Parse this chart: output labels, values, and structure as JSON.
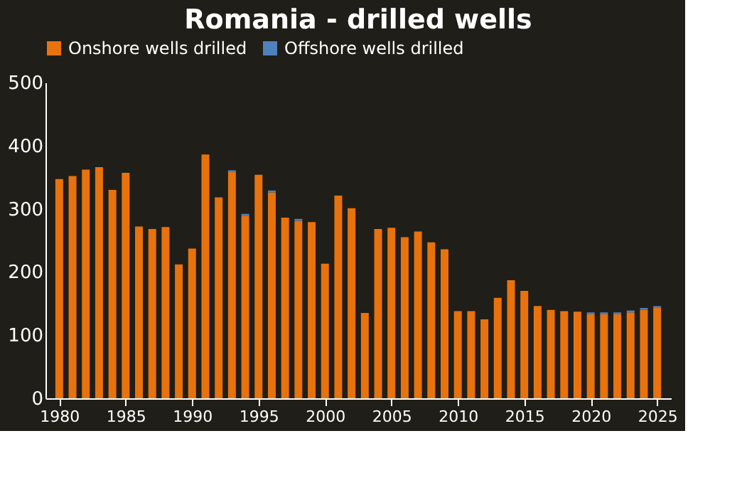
{
  "chart_data": {
    "type": "bar",
    "title": "Romania - drilled wells",
    "x": [
      1980,
      1981,
      1982,
      1983,
      1984,
      1985,
      1986,
      1987,
      1988,
      1989,
      1990,
      1991,
      1992,
      1993,
      1994,
      1995,
      1996,
      1997,
      1998,
      1999,
      2000,
      2001,
      2002,
      2003,
      2004,
      2005,
      2006,
      2007,
      2008,
      2009,
      2010,
      2011,
      2012,
      2013,
      2014,
      2015,
      2016,
      2017,
      2018,
      2019,
      2020,
      2021,
      2022,
      2023,
      2024,
      2025
    ],
    "series": [
      {
        "name": "Onshore wells drilled",
        "color": "#e8720c",
        "values": [
          347,
          352,
          362,
          366,
          330,
          357,
          272,
          268,
          271,
          212,
          237,
          386,
          318,
          358,
          289,
          354,
          326,
          286,
          281,
          279,
          213,
          321,
          301,
          135,
          268,
          270,
          255,
          264,
          247,
          236,
          138,
          138,
          125,
          159,
          187,
          170,
          146,
          140,
          138,
          137,
          133,
          133,
          133,
          136,
          140,
          143
        ]
      },
      {
        "name": "Offshore wells drilled",
        "color": "#4f81bd",
        "values": [
          0,
          0,
          0,
          0,
          0,
          0,
          0,
          0,
          0,
          0,
          0,
          0,
          0,
          3,
          3,
          0,
          3,
          0,
          3,
          0,
          0,
          0,
          0,
          0,
          0,
          0,
          0,
          0,
          0,
          0,
          0,
          0,
          0,
          0,
          0,
          0,
          0,
          0,
          0,
          0,
          3,
          3,
          3,
          3,
          3,
          3
        ]
      }
    ],
    "stacked": true,
    "xlim": [
      1979.5,
      2025.5
    ],
    "xticks": [
      1980,
      1985,
      1990,
      1995,
      2000,
      2005,
      2010,
      2015,
      2020,
      2025
    ],
    "ylim": [
      0,
      500
    ],
    "yticks": [
      0,
      100,
      200,
      300,
      400,
      500
    ],
    "grid": false,
    "legend": "top"
  }
}
